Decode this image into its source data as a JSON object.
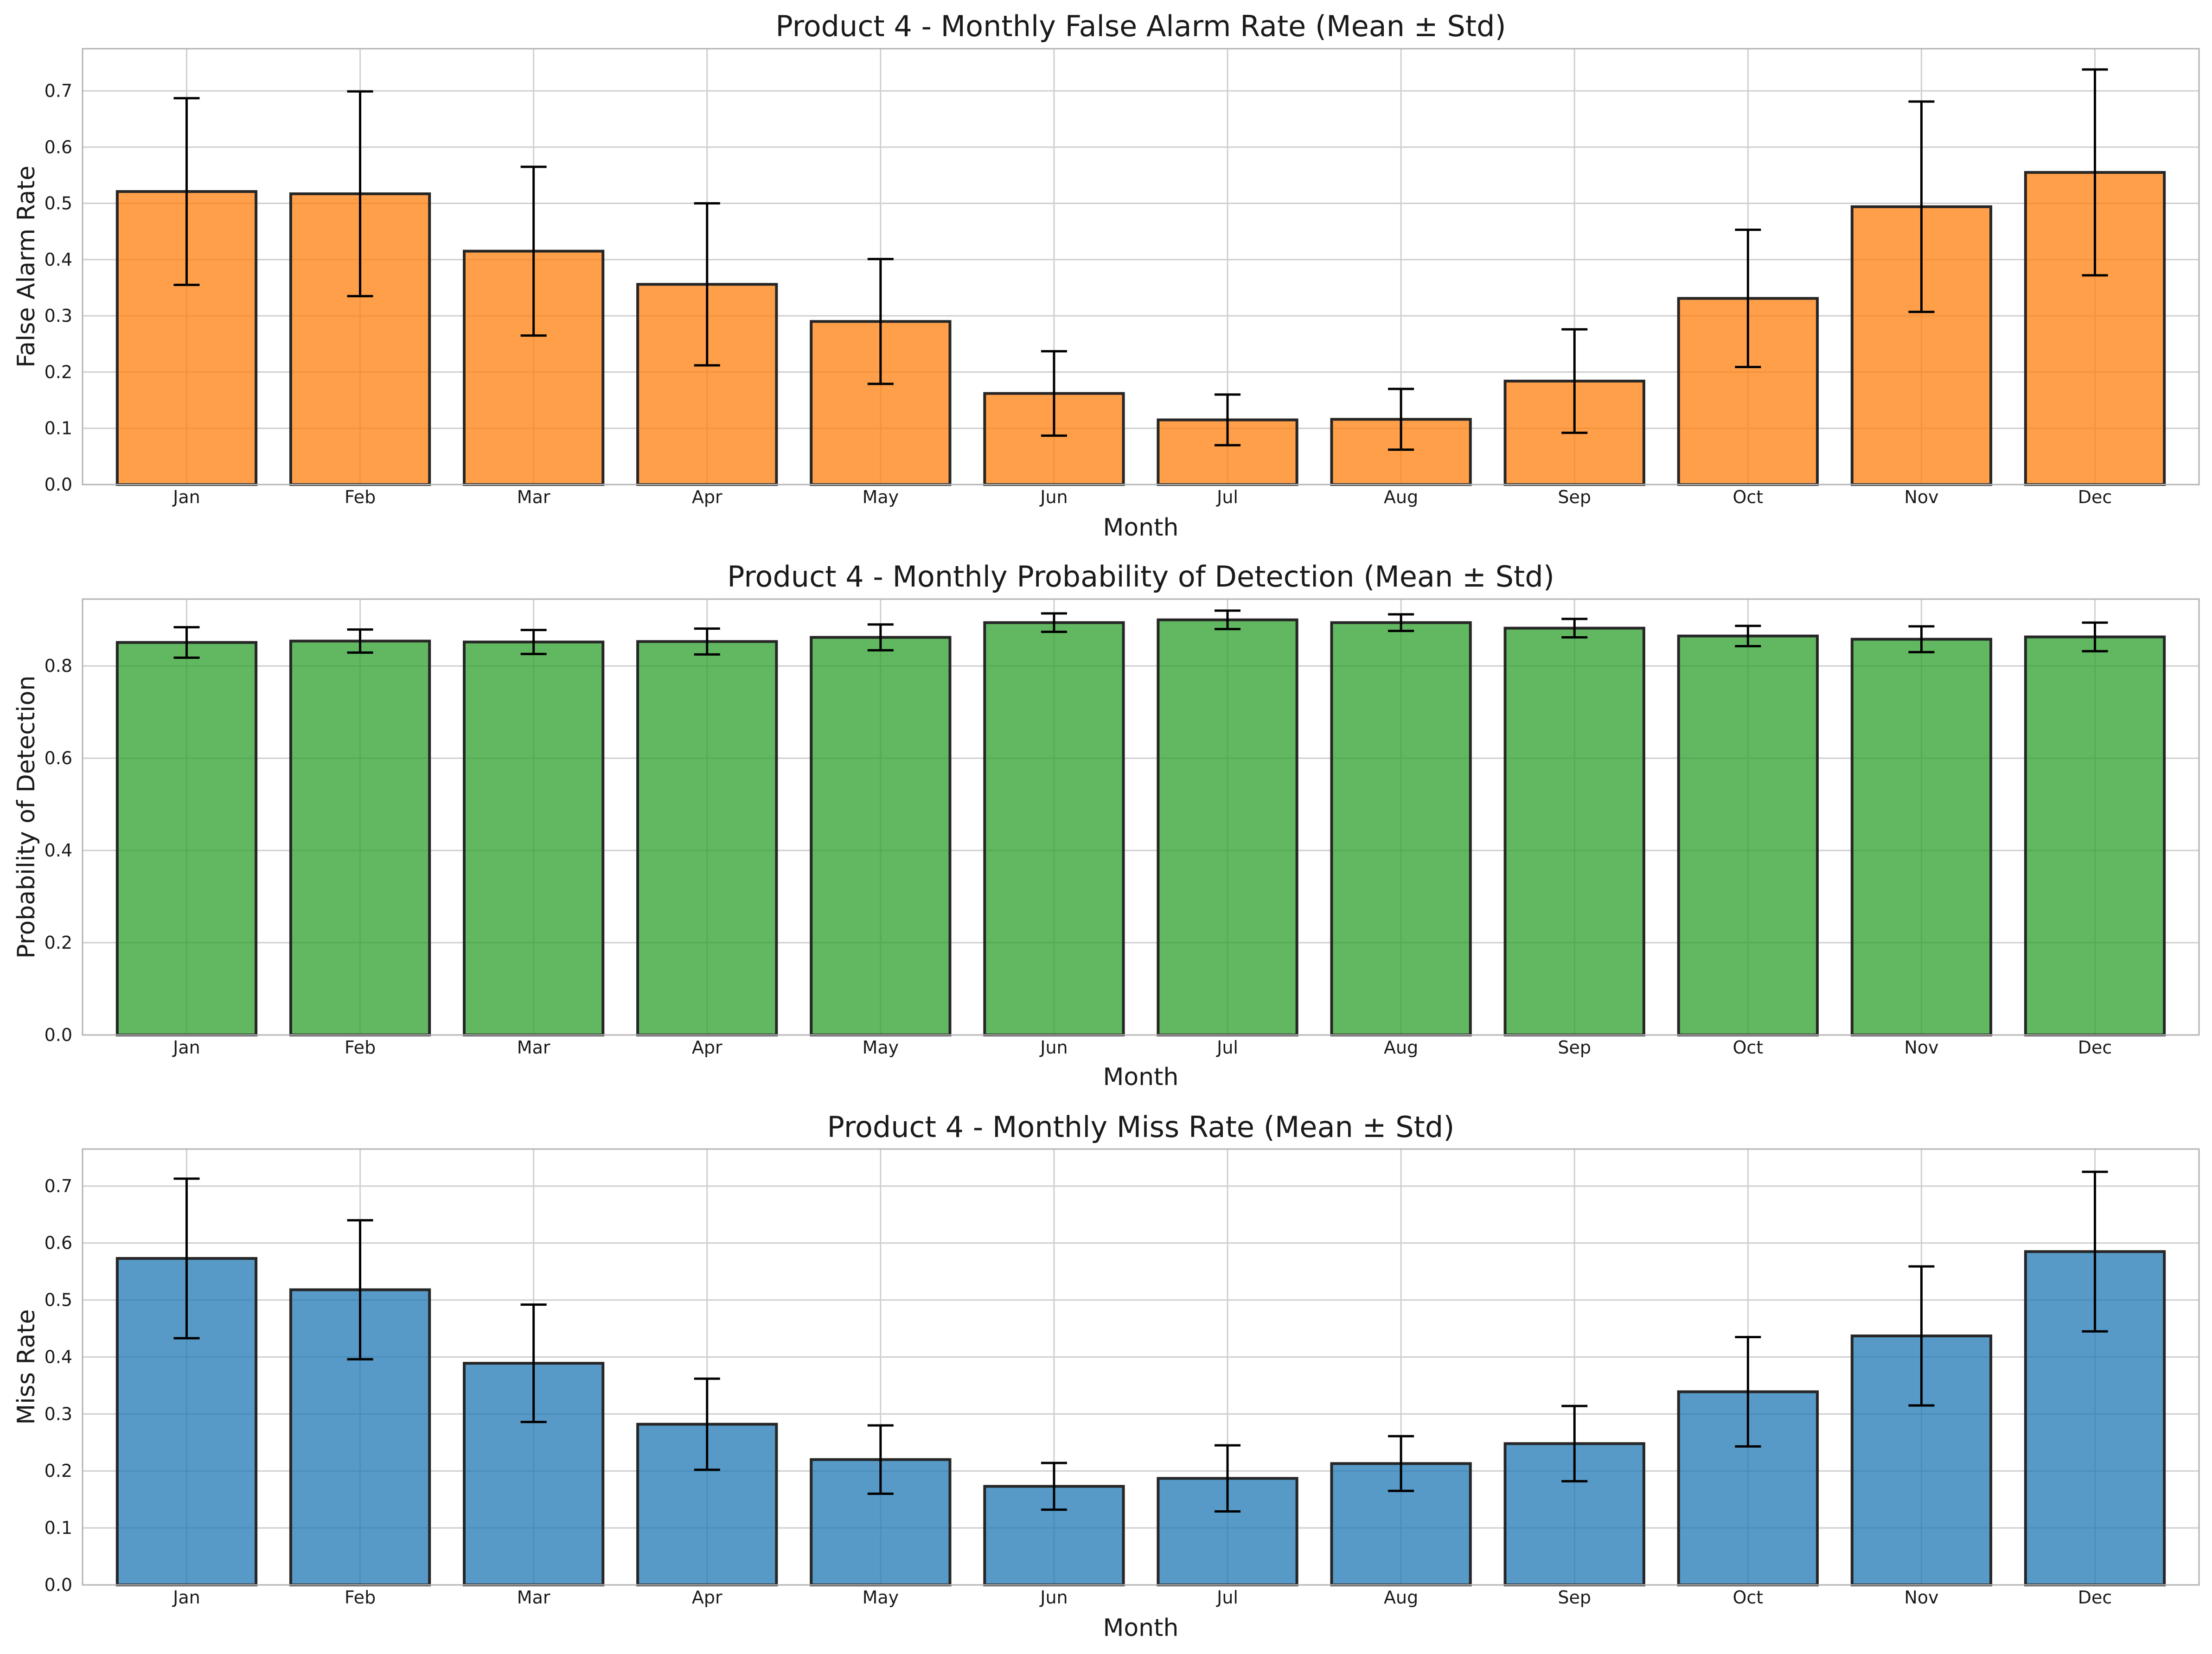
{
  "chart_data": [
    {
      "type": "bar",
      "title": "Product 4 - Monthly False Alarm Rate (Mean ± Std)",
      "xlabel": "Month",
      "ylabel": "False Alarm Rate",
      "categories": [
        "Jan",
        "Feb",
        "Mar",
        "Apr",
        "May",
        "Jun",
        "Jul",
        "Aug",
        "Sep",
        "Oct",
        "Nov",
        "Dec"
      ],
      "values": [
        0.521,
        0.517,
        0.415,
        0.356,
        0.29,
        0.162,
        0.115,
        0.116,
        0.184,
        0.331,
        0.494,
        0.555
      ],
      "errors": [
        0.166,
        0.182,
        0.15,
        0.144,
        0.111,
        0.075,
        0.045,
        0.054,
        0.092,
        0.122,
        0.187,
        0.183
      ],
      "yticks": [
        "0.0",
        "0.1",
        "0.2",
        "0.3",
        "0.4",
        "0.5",
        "0.6",
        "0.7"
      ],
      "ytick_values": [
        0,
        0.1,
        0.2,
        0.3,
        0.4,
        0.5,
        0.6,
        0.7
      ],
      "ylim": [
        0,
        0.775
      ],
      "color": "#ff7f0e",
      "grid": true
    },
    {
      "type": "bar",
      "title": "Product 4 - Monthly Probability of Detection (Mean ± Std)",
      "xlabel": "Month",
      "ylabel": "Probability of Detection",
      "categories": [
        "Jan",
        "Feb",
        "Mar",
        "Apr",
        "May",
        "Jun",
        "Jul",
        "Aug",
        "Sep",
        "Oct",
        "Nov",
        "Dec"
      ],
      "values": [
        0.851,
        0.854,
        0.852,
        0.853,
        0.862,
        0.894,
        0.9,
        0.894,
        0.882,
        0.865,
        0.858,
        0.863
      ],
      "errors": [
        0.033,
        0.025,
        0.026,
        0.028,
        0.028,
        0.02,
        0.02,
        0.018,
        0.02,
        0.022,
        0.028,
        0.031
      ],
      "yticks": [
        "0.0",
        "0.2",
        "0.4",
        "0.6",
        "0.8"
      ],
      "ytick_values": [
        0,
        0.2,
        0.4,
        0.6,
        0.8
      ],
      "ylim": [
        0,
        0.945
      ],
      "color": "#2ca02c",
      "grid": true
    },
    {
      "type": "bar",
      "title": "Product 4 - Monthly Miss Rate (Mean ± Std)",
      "xlabel": "Month",
      "ylabel": "Miss Rate",
      "categories": [
        "Jan",
        "Feb",
        "Mar",
        "Apr",
        "May",
        "Jun",
        "Jul",
        "Aug",
        "Sep",
        "Oct",
        "Nov",
        "Dec"
      ],
      "values": [
        0.573,
        0.518,
        0.389,
        0.282,
        0.22,
        0.173,
        0.187,
        0.213,
        0.248,
        0.339,
        0.437,
        0.585
      ],
      "errors": [
        0.14,
        0.122,
        0.103,
        0.08,
        0.06,
        0.041,
        0.058,
        0.048,
        0.066,
        0.096,
        0.122,
        0.14
      ],
      "yticks": [
        "0.0",
        "0.1",
        "0.2",
        "0.3",
        "0.4",
        "0.5",
        "0.6",
        "0.7"
      ],
      "ytick_values": [
        0,
        0.1,
        0.2,
        0.3,
        0.4,
        0.5,
        0.6,
        0.7
      ],
      "ylim": [
        0,
        0.765
      ],
      "color": "#1f77b4",
      "grid": true
    }
  ]
}
